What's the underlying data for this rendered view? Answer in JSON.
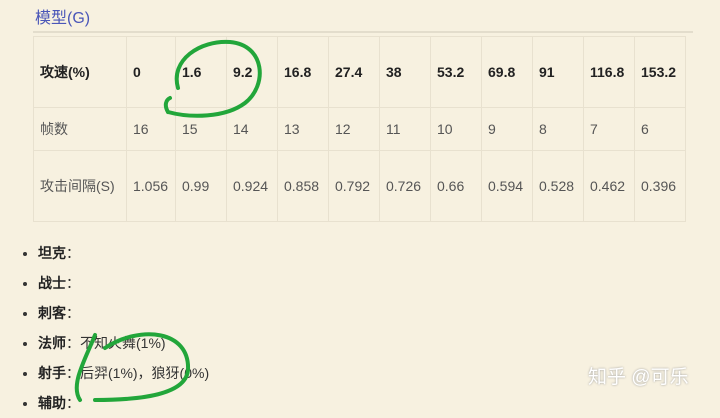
{
  "section_title": "模型(G)",
  "table": {
    "rows": [
      {
        "header": "攻速(%)",
        "cells": [
          "0",
          "1.6",
          "9.2",
          "16.8",
          "27.4",
          "38",
          "53.2",
          "69.8",
          "91",
          "116.8",
          "153.2"
        ]
      },
      {
        "header": "帧数",
        "cells": [
          "16",
          "15",
          "14",
          "13",
          "12",
          "11",
          "10",
          "9",
          "8",
          "7",
          "6"
        ]
      },
      {
        "header": "攻击间隔(S)",
        "cells": [
          "1.056",
          "0.99",
          "0.924",
          "0.858",
          "0.792",
          "0.726",
          "0.66",
          "0.594",
          "0.528",
          "0.462",
          "0.396"
        ]
      }
    ]
  },
  "roles": [
    {
      "label": "坦克",
      "value": ""
    },
    {
      "label": "战士",
      "value": ""
    },
    {
      "label": "刺客",
      "value": ""
    },
    {
      "label": "法师",
      "value": "不知火舞(1%)"
    },
    {
      "label": "射手",
      "value": "后羿(1%)，狼犽(0%)"
    },
    {
      "label": "辅助",
      "value": ""
    }
  ],
  "watermark": "知乎 @可乐",
  "annotation_color": "#22a63a"
}
